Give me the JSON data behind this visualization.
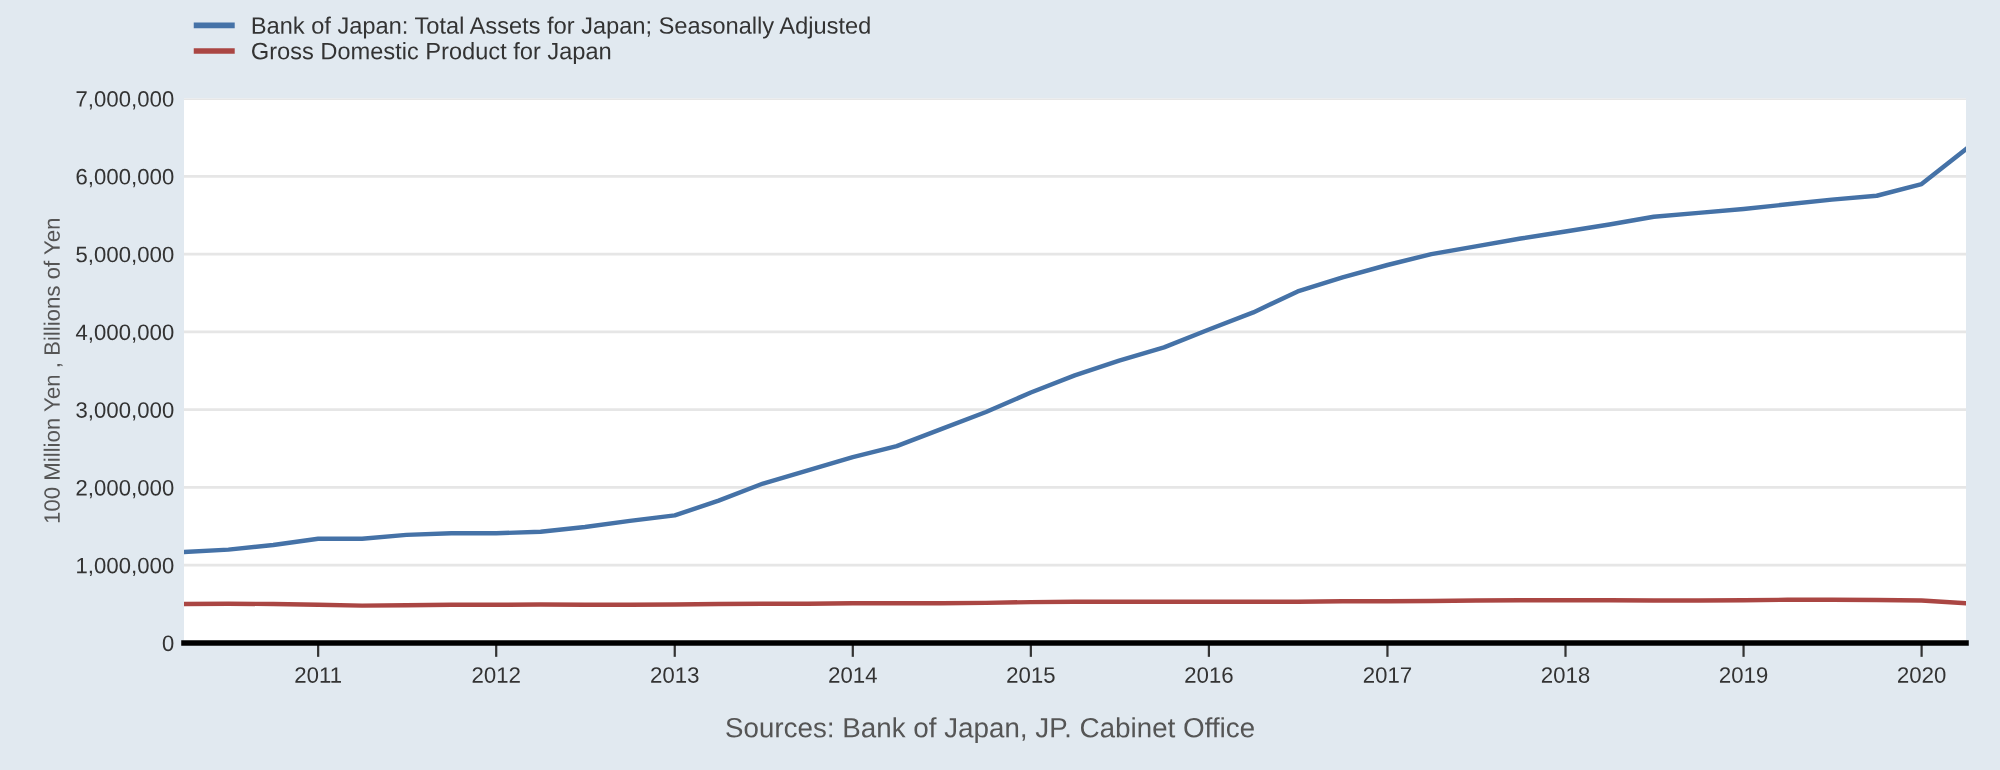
{
  "chart_data": {
    "type": "line",
    "ylabel": "100 Million Yen , Billions of Yen",
    "annotations": [
      "Sources: Bank of Japan, JP. Cabinet Office"
    ],
    "x": [
      "2010-04",
      "2010-07",
      "2010-10",
      "2011-01",
      "2011-04",
      "2011-07",
      "2011-10",
      "2012-01",
      "2012-04",
      "2012-07",
      "2012-10",
      "2013-01",
      "2013-04",
      "2013-07",
      "2013-10",
      "2014-01",
      "2014-04",
      "2014-07",
      "2014-10",
      "2015-01",
      "2015-04",
      "2015-07",
      "2015-10",
      "2016-01",
      "2016-04",
      "2016-07",
      "2016-10",
      "2017-01",
      "2017-04",
      "2017-07",
      "2017-10",
      "2018-01",
      "2018-04",
      "2018-07",
      "2018-10",
      "2019-01",
      "2019-04",
      "2019-07",
      "2019-10",
      "2020-01",
      "2020-04"
    ],
    "series": [
      {
        "name": "Bank of Japan: Total Assets for Japan; Seasonally Adjusted",
        "color": "#4572a7",
        "values": [
          1170000,
          1200000,
          1260000,
          1340000,
          1340000,
          1390000,
          1410000,
          1410000,
          1430000,
          1490000,
          1570000,
          1640000,
          1830000,
          2050000,
          2220000,
          2390000,
          2530000,
          2750000,
          2970000,
          3220000,
          3440000,
          3630000,
          3800000,
          4030000,
          4250000,
          4520000,
          4700000,
          4860000,
          5000000,
          5100000,
          5200000,
          5290000,
          5380000,
          5480000,
          5530000,
          5580000,
          5640000,
          5700000,
          5750000,
          5900000,
          6350000
        ]
      },
      {
        "name": "Gross Domestic Product for Japan",
        "color": "#aa4643",
        "values": [
          500000,
          505000,
          500000,
          490000,
          480000,
          485000,
          490000,
          490000,
          495000,
          490000,
          490000,
          495000,
          500000,
          505000,
          505000,
          510000,
          510000,
          510000,
          515000,
          525000,
          530000,
          530000,
          530000,
          530000,
          530000,
          530000,
          535000,
          535000,
          540000,
          545000,
          548000,
          550000,
          550000,
          545000,
          545000,
          550000,
          555000,
          555000,
          552000,
          545000,
          510000
        ]
      }
    ],
    "xlim": [
      "2010-04-01",
      "2020-04-01"
    ],
    "xticks": [
      {
        "value": "2011-01-01",
        "label": "2011"
      },
      {
        "value": "2012-01-01",
        "label": "2012"
      },
      {
        "value": "2013-01-01",
        "label": "2013"
      },
      {
        "value": "2014-01-01",
        "label": "2014"
      },
      {
        "value": "2015-01-01",
        "label": "2015"
      },
      {
        "value": "2016-01-01",
        "label": "2016"
      },
      {
        "value": "2017-01-01",
        "label": "2017"
      },
      {
        "value": "2018-01-01",
        "label": "2018"
      },
      {
        "value": "2019-01-01",
        "label": "2019"
      },
      {
        "value": "2020-01-01",
        "label": "2020"
      }
    ],
    "ylim": [
      0,
      7000000
    ],
    "yticks": [
      {
        "value": 0,
        "label": "0"
      },
      {
        "value": 1000000,
        "label": "1,000,000"
      },
      {
        "value": 2000000,
        "label": "2,000,000"
      },
      {
        "value": 3000000,
        "label": "3,000,000"
      },
      {
        "value": 4000000,
        "label": "4,000,000"
      },
      {
        "value": 5000000,
        "label": "5,000,000"
      },
      {
        "value": 6000000,
        "label": "6,000,000"
      },
      {
        "value": 7000000,
        "label": "7,000,000"
      }
    ],
    "grid": "y",
    "legend": "top left",
    "marker": "none",
    "line_style": "solid"
  }
}
